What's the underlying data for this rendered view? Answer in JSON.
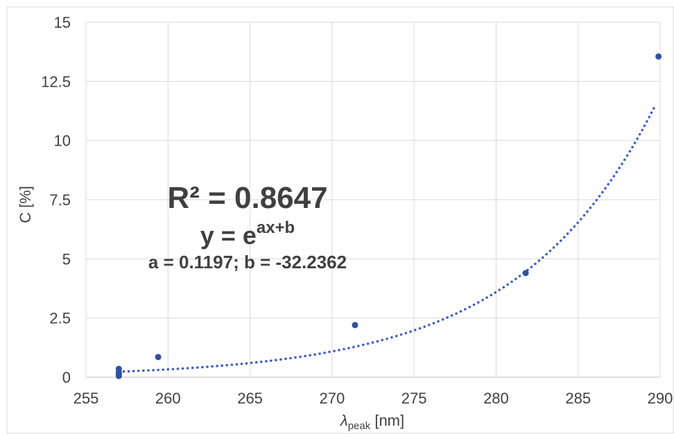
{
  "chart_data": {
    "type": "scatter",
    "xlabel_main": "λ",
    "xlabel_sub": "peak",
    "xlabel_unit": " [nm]",
    "ylabel": "C [%]",
    "xlim": [
      255,
      290
    ],
    "ylim": [
      0,
      15
    ],
    "x_ticks": [
      255,
      260,
      265,
      270,
      275,
      280,
      285,
      290
    ],
    "y_ticks": [
      0,
      2.5,
      5,
      7.5,
      10,
      12.5,
      15
    ],
    "x_tick_labels": [
      "255",
      "260",
      "265",
      "270",
      "275",
      "280",
      "285",
      "290"
    ],
    "y_tick_labels": [
      "0",
      "2.5",
      "5",
      "7.5",
      "10",
      "12.5",
      "15"
    ],
    "grid": true,
    "series": [
      {
        "x": [
          257.0,
          257.0,
          257.0,
          257.0,
          259.4,
          271.4,
          281.8,
          289.9
        ],
        "y": [
          0.35,
          0.2,
          0.1,
          0.05,
          0.85,
          2.2,
          4.4,
          13.55
        ],
        "color": "#3050a0"
      }
    ],
    "trendline": {
      "type": "exponential",
      "a": 0.1197,
      "b": -32.2362,
      "x_range": [
        257.0,
        289.7
      ],
      "color": "#3a5bc7"
    },
    "annotations": {
      "r2": "R² = 0.8647",
      "eq_base": "y = e",
      "eq_exp": "ax+b",
      "params": "a = 0.1197; b = -32.2362"
    }
  }
}
